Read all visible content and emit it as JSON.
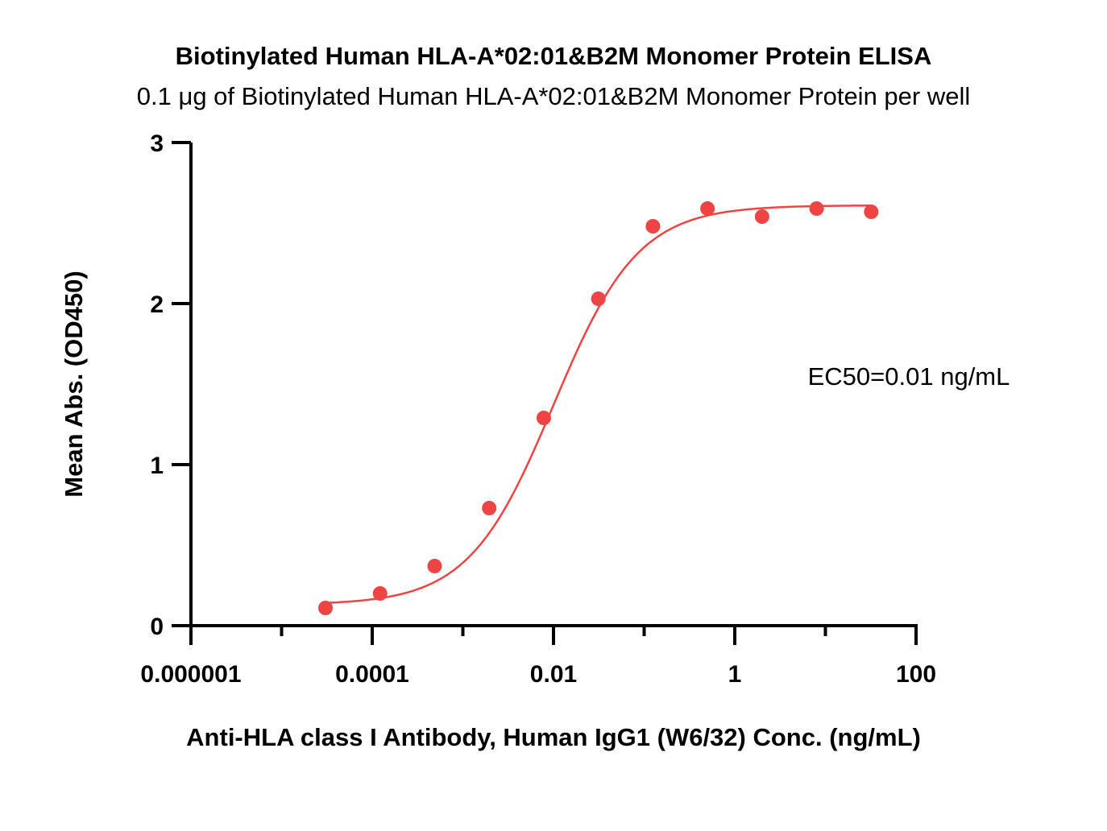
{
  "chart_data": {
    "type": "scatter",
    "title": "Biotinylated Human HLA-A*02:01&B2M Monomer Protein ELISA",
    "subtitle": "0.1 μg of Biotinylated Human HLA-A*02:01&B2M Monomer Protein per well",
    "xlabel": "Anti-HLA class I Antibody, Human IgG1 (W6/32) Conc. (ng/mL)",
    "ylabel": "Mean Abs. (OD450)",
    "x_scale": "log",
    "xlim": [
      1e-06,
      100
    ],
    "ylim": [
      0,
      3
    ],
    "x_ticks": [
      1e-06,
      0.0001,
      0.01,
      1,
      100
    ],
    "x_tick_labels": [
      "0.000001",
      "0.0001",
      "0.01",
      "1",
      "100"
    ],
    "y_ticks": [
      0,
      1,
      2,
      3
    ],
    "y_tick_labels": [
      "0",
      "1",
      "2",
      "3"
    ],
    "grid": false,
    "point_color": "#ef4444",
    "curve_color": "#ef4444",
    "series": [
      {
        "x": [
          3.052e-05,
          0.00012207,
          0.00048828,
          0.00195313,
          0.0078125,
          0.03125,
          0.125,
          0.5,
          2,
          8,
          32
        ],
        "y": [
          0.11,
          0.2,
          0.37,
          0.73,
          1.29,
          2.03,
          2.48,
          2.59,
          2.54,
          2.59,
          2.57
        ]
      }
    ],
    "fit": {
      "bottom": 0.13,
      "top": 2.61,
      "ec50": 0.01,
      "hill": 0.93,
      "x_range": [
        3.052e-05,
        32
      ]
    },
    "annotations": [
      {
        "text": "EC50=0.01 ng/mL"
      }
    ]
  }
}
